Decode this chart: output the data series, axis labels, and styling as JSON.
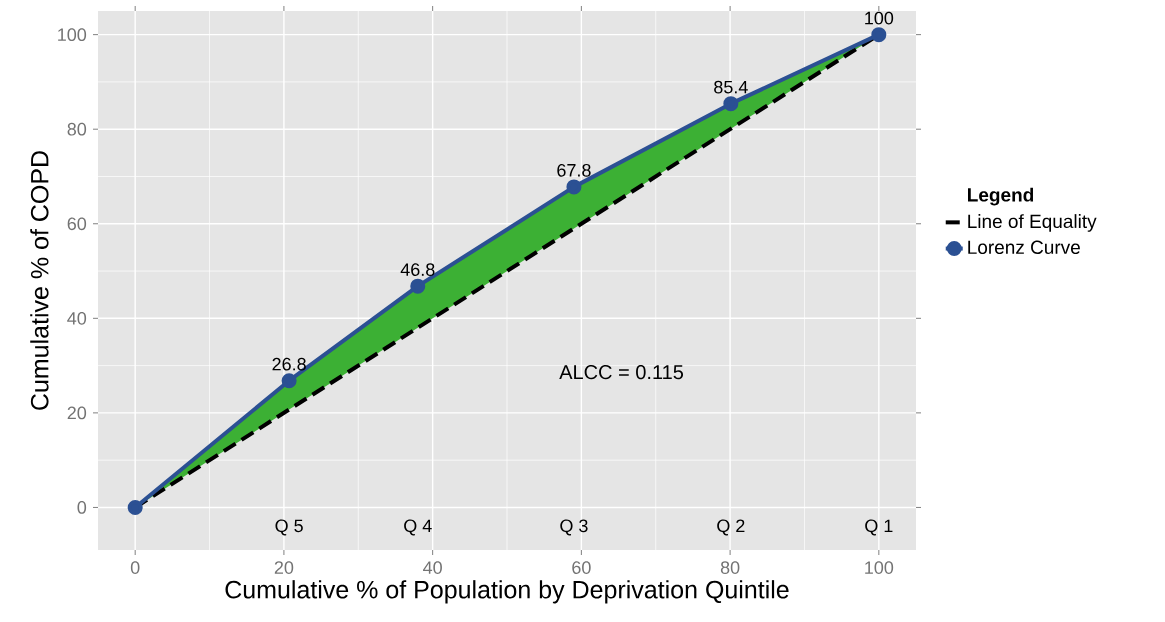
{
  "chart_data": {
    "type": "line",
    "xlabel": "Cumulative % of Population by Deprivation Quintile",
    "ylabel": "Cumulative % of  COPD",
    "legend_title": "Legend",
    "series": [
      {
        "name": "Line of Equality",
        "color": "#000000",
        "x": [
          0,
          100
        ],
        "values": [
          0,
          100
        ],
        "line_style": "dashed",
        "marker": "none"
      },
      {
        "name": "Lorenz Curve",
        "color": "#2b5093",
        "x": [
          0,
          20.7,
          38.0,
          59.0,
          80.1,
          100
        ],
        "values": [
          0,
          26.8,
          46.8,
          67.8,
          85.4,
          100
        ],
        "lower": [
          0,
          20.7,
          38.0,
          59.0,
          80.1,
          100
        ],
        "upper": [
          0,
          26.8,
          46.8,
          67.8,
          85.4,
          100
        ],
        "line_style": "solid",
        "marker": "circle",
        "value_labels": [
          null,
          "26.8",
          "46.8",
          "67.8",
          "85.4",
          "100"
        ]
      }
    ],
    "annotations": [
      "Q 5",
      "Q 4",
      "Q 3",
      "Q 2",
      "Q 1",
      "ALCC =  0.115"
    ],
    "xlim": [
      -5,
      105
    ],
    "ylim": [
      -9,
      105
    ],
    "xticks": [
      0,
      20,
      40,
      60,
      80,
      100
    ],
    "yticks": [
      0,
      20,
      40,
      60,
      80,
      100
    ],
    "grid": true,
    "legend": "right"
  }
}
